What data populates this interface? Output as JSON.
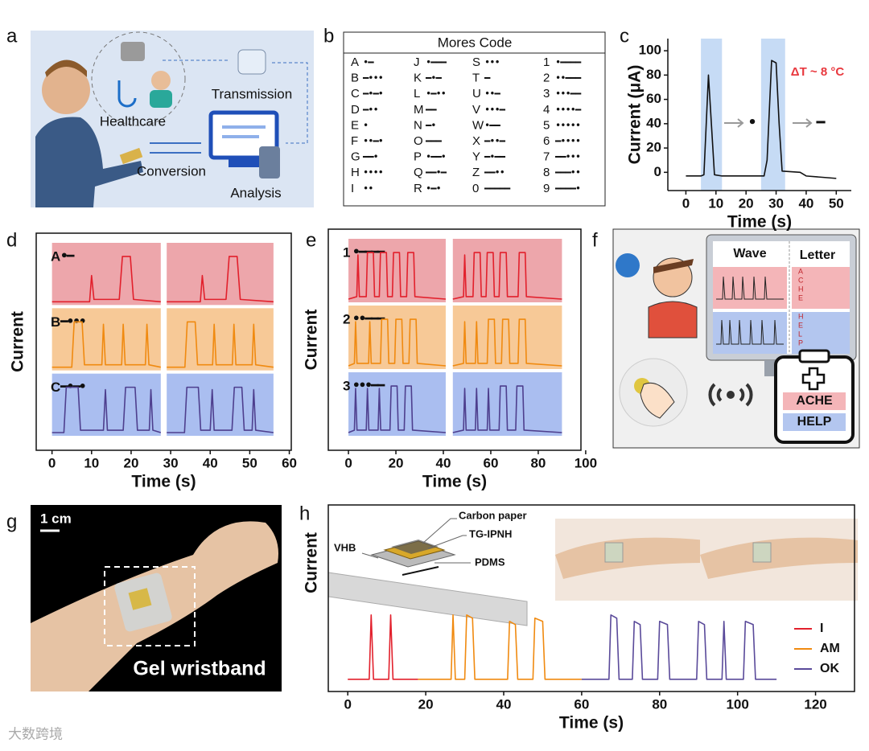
{
  "panel_a": {
    "panel": "a",
    "labels": [
      "Healthcare",
      "Transmission",
      "Conversion",
      "Analysis"
    ]
  },
  "panel_b": {
    "panel": "b",
    "title": "Mores Code",
    "entries": [
      {
        "char": "A",
        "code": "•━"
      },
      {
        "char": "B",
        "code": "━•••"
      },
      {
        "char": "C",
        "code": "━•━•"
      },
      {
        "char": "D",
        "code": "━••"
      },
      {
        "char": "E",
        "code": "•"
      },
      {
        "char": "F",
        "code": "••━•"
      },
      {
        "char": "G",
        "code": "━━•"
      },
      {
        "char": "H",
        "code": "••••"
      },
      {
        "char": "I",
        "code": "••"
      },
      {
        "char": "J",
        "code": "•━━━"
      },
      {
        "char": "K",
        "code": "━•━"
      },
      {
        "char": "L",
        "code": "•━••"
      },
      {
        "char": "M",
        "code": "━━"
      },
      {
        "char": "N",
        "code": "━•"
      },
      {
        "char": "O",
        "code": "━━━"
      },
      {
        "char": "P",
        "code": "•━━•"
      },
      {
        "char": "Q",
        "code": "━━•━"
      },
      {
        "char": "R",
        "code": "•━•"
      },
      {
        "char": "S",
        "code": "•••"
      },
      {
        "char": "T",
        "code": "━"
      },
      {
        "char": "U",
        "code": "••━"
      },
      {
        "char": "V",
        "code": "•••━"
      },
      {
        "char": "W",
        "code": "•━━"
      },
      {
        "char": "X",
        "code": "━••━"
      },
      {
        "char": "Y",
        "code": "━•━━"
      },
      {
        "char": "Z",
        "code": "━━••"
      },
      {
        "char": "0",
        "code": "━━━━━"
      },
      {
        "char": "1",
        "code": "•━━━━"
      },
      {
        "char": "2",
        "code": "••━━━"
      },
      {
        "char": "3",
        "code": "•••━━"
      },
      {
        "char": "4",
        "code": "••••━"
      },
      {
        "char": "5",
        "code": "•••••"
      },
      {
        "char": "6",
        "code": "━••••"
      },
      {
        "char": "7",
        "code": "━━•••"
      },
      {
        "char": "8",
        "code": "━━━••"
      },
      {
        "char": "9",
        "code": "━━━━•"
      }
    ]
  },
  "panel_f": {
    "panel": "f",
    "headers": [
      "Wave",
      "Letter"
    ],
    "screen_letters": [
      [
        "A",
        "C",
        "H",
        "E"
      ],
      [
        "H",
        "E",
        "L",
        "P"
      ]
    ],
    "words": [
      "ACHE",
      "HELP"
    ]
  },
  "panel_g": {
    "panel": "g",
    "scale": "1 cm",
    "caption": "Gel wristband"
  },
  "chart_data": [
    {
      "type": "line",
      "panel": "c",
      "xlabel": "Time (s)",
      "ylabel": "Current (μA)",
      "annotation": "ΔT ~ 8 °C",
      "symbols": [
        "•",
        "━"
      ],
      "xlim": [
        -6,
        55
      ],
      "ylim": [
        -15,
        110
      ],
      "xticks": [
        0,
        10,
        20,
        30,
        40,
        50
      ],
      "yticks": [
        0,
        20,
        40,
        60,
        80,
        100
      ],
      "highlight_ranges": [
        [
          5,
          12
        ],
        [
          25,
          33
        ]
      ],
      "highlight_color": "#c6dbf5",
      "series": [
        {
          "color": "#111111",
          "x": [
            0,
            5,
            6,
            7.5,
            9.5,
            12,
            20,
            26,
            27,
            28.5,
            30,
            31,
            32,
            38,
            40,
            45,
            50
          ],
          "values": [
            -3,
            -3,
            -2,
            80,
            -2,
            -3,
            -3,
            -3,
            10,
            92,
            90,
            40,
            1,
            0,
            -3,
            -4,
            -5
          ]
        }
      ]
    },
    {
      "type": "line",
      "panel": "d",
      "xlabel": "Time (s)",
      "ylabel": "Current",
      "rows": true,
      "xlim": [
        -4,
        60.5
      ],
      "ylim": [
        0,
        1
      ],
      "xticks": [
        0,
        10,
        20,
        30,
        40,
        50,
        60
      ],
      "series": [
        {
          "name": "A",
          "code": "•━",
          "color": "#e2202c",
          "band_color": "#eda6ab",
          "x": [
            0,
            9.5,
            10,
            10.6,
            17,
            17.8,
            19.8,
            20.6,
            27.5,
            28,
            29,
            37.5,
            38,
            38.6,
            44,
            44.8,
            46.8,
            47.6,
            56
          ],
          "values": [
            0,
            0,
            0.55,
            0.05,
            0.05,
            0.95,
            0.95,
            0.05,
            0,
            null,
            0,
            0,
            0.55,
            0.05,
            0.05,
            0.95,
            0.95,
            0.05,
            0
          ]
        },
        {
          "name": "B",
          "code": "━•••",
          "color": "#f08a10",
          "band_color": "#f7c997",
          "x": [
            0,
            5,
            5.6,
            7.6,
            8.2,
            12.6,
            13,
            13.5,
            17.6,
            18,
            18.5,
            23.6,
            24,
            24.5,
            27.5,
            28,
            29,
            33.6,
            34.2,
            36.2,
            36.8,
            40.6,
            41,
            41.5,
            45.6,
            46,
            46.5,
            50.6,
            51,
            51.5,
            56
          ],
          "values": [
            0,
            0,
            0.95,
            0.95,
            0.05,
            0.05,
            0.9,
            0.05,
            0.05,
            0.9,
            0.05,
            0.05,
            0.9,
            0.05,
            0,
            null,
            0,
            0,
            0.95,
            0.95,
            0.05,
            0.05,
            0.9,
            0.05,
            0.05,
            0.9,
            0.05,
            0.05,
            0.9,
            0.05,
            0
          ]
        },
        {
          "name": "C",
          "code": "━•━•",
          "color": "#4e3f8e",
          "band_color": "#aabef0",
          "x": [
            0,
            3,
            3.6,
            6.6,
            7.2,
            13,
            13.5,
            14,
            18,
            18.6,
            21,
            21.6,
            24.6,
            25,
            25.5,
            27.5,
            28,
            29,
            33.5,
            34.1,
            37,
            37.6,
            40,
            40.5,
            41,
            45.5,
            46.1,
            48,
            48.6,
            50.6,
            51,
            51.5,
            56
          ],
          "values": [
            0,
            0,
            0.95,
            0.95,
            0.05,
            0.05,
            0.9,
            0.05,
            0.05,
            0.95,
            0.95,
            0.05,
            0.05,
            0.9,
            0.05,
            0,
            null,
            0,
            0,
            0.95,
            0.95,
            0.05,
            0.05,
            0.9,
            0.05,
            0.05,
            0.95,
            0.95,
            0.05,
            0.05,
            0.9,
            0.05,
            0
          ]
        }
      ]
    },
    {
      "type": "line",
      "panel": "e",
      "xlabel": "Time (s)",
      "ylabel": "Current",
      "rows": true,
      "xlim": [
        -8.5,
        98
      ],
      "ylim": [
        0,
        1
      ],
      "xticks": [
        0,
        20,
        40,
        60,
        80,
        100
      ],
      "series": [
        {
          "name": "1",
          "code": "•━━━━",
          "color": "#e2202c",
          "band_color": "#eda6ab",
          "x": [
            0,
            3.5,
            4,
            4.6,
            7.5,
            8,
            10.5,
            11,
            13,
            13.5,
            16,
            16.5,
            18.5,
            19,
            21.5,
            22,
            24.5,
            25,
            27.5,
            28,
            41,
            42,
            44,
            48.5,
            49,
            49.6,
            52.5,
            53,
            55.5,
            56,
            58,
            58.5,
            61,
            61.5,
            63.5,
            64,
            66.5,
            67,
            71.5,
            72,
            74.5,
            75,
            90
          ],
          "values": [
            0,
            0.05,
            0.9,
            0.05,
            0.05,
            0.95,
            0.95,
            0.05,
            0.05,
            0.95,
            0.95,
            0.05,
            0.05,
            0.95,
            0.95,
            0.05,
            0.05,
            0.95,
            0.95,
            0.05,
            0,
            null,
            0,
            0.05,
            0.9,
            0.05,
            0.05,
            0.95,
            0.95,
            0.05,
            0.05,
            0.95,
            0.95,
            0.05,
            0.05,
            0.95,
            0.95,
            0.05,
            0.05,
            0.95,
            0.95,
            0.05,
            0
          ]
        },
        {
          "name": "2",
          "code": "••━━━",
          "color": "#f08a10",
          "band_color": "#f7c997",
          "x": [
            0,
            2.5,
            3,
            3.6,
            8.5,
            9,
            9.6,
            13.5,
            14,
            16.5,
            17,
            19.5,
            20,
            22.5,
            23,
            25.5,
            26,
            28.5,
            29,
            41,
            42,
            44,
            48.5,
            49,
            49.6,
            53.5,
            54,
            54.6,
            58.5,
            59,
            61.5,
            62,
            64.5,
            65,
            67.5,
            68,
            71.5,
            72,
            74.5,
            75,
            90
          ],
          "values": [
            0,
            0.05,
            0.9,
            0.05,
            0.05,
            0.9,
            0.05,
            0.05,
            0.95,
            0.95,
            0.05,
            0.05,
            0.95,
            0.95,
            0.05,
            0.05,
            0.95,
            0.95,
            0.05,
            0,
            null,
            0,
            0.05,
            0.9,
            0.05,
            0.05,
            0.9,
            0.05,
            0.05,
            0.95,
            0.95,
            0.05,
            0.05,
            0.95,
            0.95,
            0.05,
            0.05,
            0.95,
            0.95,
            0.05,
            0
          ]
        },
        {
          "name": "3",
          "code": "•••━━",
          "color": "#4e3f8e",
          "band_color": "#aabef0",
          "x": [
            0,
            2.5,
            3,
            3.6,
            7.5,
            8,
            8.6,
            12.5,
            13,
            13.6,
            17.5,
            18,
            20.5,
            21,
            23.5,
            24,
            26.5,
            27,
            41,
            42,
            44,
            48.5,
            49,
            49.6,
            53.5,
            54,
            54.6,
            58.5,
            59,
            59.6,
            63.5,
            64,
            66.5,
            67,
            70.5,
            71,
            73.5,
            74,
            90
          ],
          "values": [
            0,
            0.05,
            0.9,
            0.05,
            0.05,
            0.9,
            0.05,
            0.05,
            0.9,
            0.05,
            0.05,
            0.95,
            0.95,
            0.05,
            0.05,
            0.95,
            0.95,
            0.05,
            0,
            null,
            0,
            0.05,
            0.9,
            0.05,
            0.05,
            0.9,
            0.05,
            0.05,
            0.9,
            0.05,
            0.05,
            0.95,
            0.95,
            0.05,
            0.05,
            0.95,
            0.95,
            0.05,
            0
          ]
        }
      ]
    },
    {
      "type": "line",
      "panel": "h",
      "xlabel": "Time (s)",
      "ylabel": "Current",
      "legend": "lower right",
      "inset_labels": [
        "Carbon paper",
        "TG-IPNH",
        "VHB",
        "PDMS"
      ],
      "xlim": [
        -5,
        130
      ],
      "ylim": [
        -0.19,
        2.71
      ],
      "xticks": [
        0,
        20,
        40,
        60,
        80,
        100,
        120
      ],
      "series": [
        {
          "name": "I",
          "color": "#e2202c",
          "x": [
            0,
            5.5,
            6,
            6.6,
            10.5,
            11,
            11.6,
            18
          ],
          "values": [
            0,
            0,
            1,
            0,
            0,
            1,
            0,
            0
          ]
        },
        {
          "name": "AM",
          "color": "#f08a10",
          "x": [
            18,
            26.5,
            27,
            27.6,
            30,
            30.5,
            32,
            32.6,
            41,
            41.5,
            43,
            43.6,
            47.5,
            48,
            50,
            50.6,
            60
          ],
          "values": [
            0,
            0,
            1,
            0,
            0,
            1,
            0.95,
            0,
            0,
            0.9,
            0.85,
            0,
            0,
            0.95,
            0.9,
            0,
            0
          ]
        },
        {
          "name": "OK",
          "color": "#5a4a9a",
          "x": [
            60,
            67,
            67.5,
            69,
            69.6,
            73,
            73.5,
            75,
            75.6,
            79.5,
            80,
            82,
            82.6,
            89.5,
            90,
            91.5,
            92.1,
            96,
            96.5,
            97.1,
            101.5,
            102,
            104,
            104.6,
            110
          ],
          "values": [
            0,
            0,
            1,
            0.95,
            0,
            0,
            0.9,
            0.85,
            0,
            0,
            0.9,
            0.85,
            0,
            0,
            0.9,
            0.85,
            0,
            0,
            0.9,
            0,
            0,
            0.9,
            0.85,
            0,
            0
          ]
        }
      ]
    }
  ],
  "watermark": "大数跨境"
}
